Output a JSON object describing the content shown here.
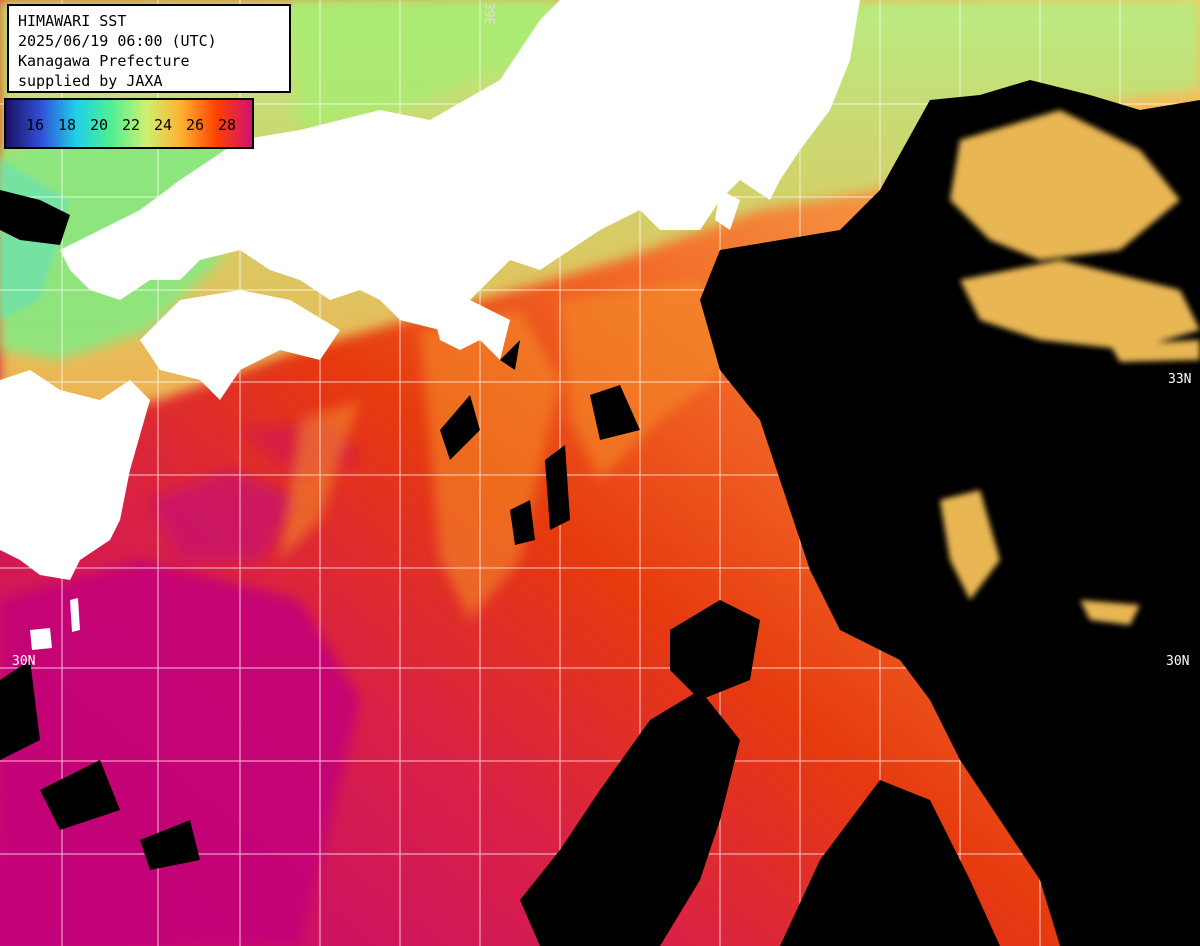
{
  "info": {
    "line1": "HIMAWARI SST",
    "line2": "2025/06/19 06:00 (UTC)",
    "line3": "Kanagawa Prefecture",
    "line4": "supplied by JAXA"
  },
  "colorbar": {
    "ticks": [
      "16",
      "18",
      "20",
      "22",
      "24",
      "26",
      "28"
    ],
    "colors": [
      "#1a1060",
      "#3050d8",
      "#20d0e8",
      "#50f090",
      "#d0f070",
      "#ffb030",
      "#ff4000",
      "#d01070"
    ]
  },
  "latitude_labels": {
    "lat33_right": "33N",
    "lat30_left": "30N",
    "lat30_right": "30N"
  },
  "longitude_labels": {
    "lon_top": "39E"
  },
  "colors": {
    "land": "#ffffff",
    "cloud": "#000000",
    "grid": "#ffffff",
    "sst_magenta": "#c2067a",
    "sst_red": "#e63a0e",
    "sst_orange": "#f58a32",
    "sst_yellow": "#f7c860",
    "sst_green": "#9be878"
  }
}
